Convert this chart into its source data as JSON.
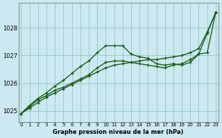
{
  "title": "Graphe pression niveau de la mer (hPa)",
  "bg_color": "#cce8f0",
  "grid_color": "#99cccc",
  "line_color": "#1a5c1a",
  "x_ticks": [
    0,
    1,
    2,
    3,
    4,
    5,
    6,
    7,
    8,
    9,
    10,
    11,
    12,
    13,
    14,
    15,
    16,
    17,
    18,
    19,
    20,
    21,
    22,
    23
  ],
  "y_ticks": [
    1025,
    1026,
    1027,
    1028
  ],
  "ylim": [
    1024.6,
    1028.9
  ],
  "xlim": [
    -0.3,
    23.3
  ],
  "line_smooth": [
    1024.9,
    1025.15,
    1025.4,
    1025.55,
    1025.75,
    1025.85,
    1026.0,
    1026.15,
    1026.3,
    1026.55,
    1026.75,
    1026.8,
    1026.8,
    1026.75,
    1026.7,
    1026.65,
    1026.6,
    1026.55,
    1026.65,
    1026.7,
    1026.85,
    1027.05,
    1027.8,
    1028.55
  ],
  "line_peaked": [
    1024.9,
    1025.2,
    1025.45,
    1025.65,
    1025.9,
    1026.1,
    1026.35,
    1026.6,
    1026.8,
    1027.1,
    1027.35,
    1027.35,
    1027.35,
    1027.05,
    1026.95,
    1026.9,
    1026.7,
    1026.65,
    1026.7,
    1026.65,
    1026.75,
    1027.05,
    1027.1,
    1028.55
  ],
  "line_diagonal": [
    1024.9,
    1025.1,
    1025.3,
    1025.5,
    1025.65,
    1025.8,
    1025.95,
    1026.1,
    1026.25,
    1026.4,
    1026.55,
    1026.65,
    1026.7,
    1026.75,
    1026.8,
    1026.85,
    1026.85,
    1026.9,
    1026.95,
    1027.0,
    1027.1,
    1027.25,
    1027.85,
    1028.55
  ]
}
